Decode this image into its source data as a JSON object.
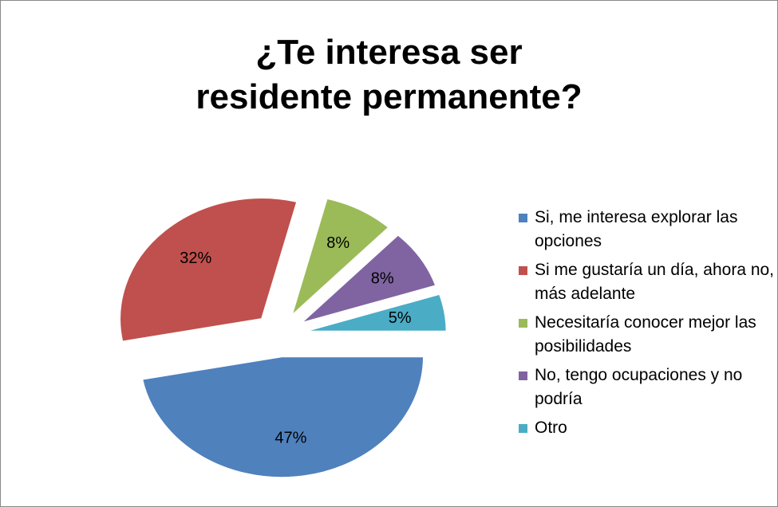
{
  "chart_data": {
    "type": "pie",
    "title": "¿Te interesa ser residente permanente?",
    "categories": [
      "Si, me interesa explorar las opciones",
      "Si me gustaría un día, ahora no, más adelante",
      "Necesitaría conocer mejor las posibilidades",
      "No, tengo ocupaciones y no podría",
      "Otro"
    ],
    "values": [
      47,
      32,
      8,
      8,
      5
    ],
    "value_labels": [
      "47%",
      "32%",
      "8%",
      "8%",
      "5%"
    ],
    "colors": [
      "#4f81bd",
      "#c0504d",
      "#9bbb59",
      "#8064a2",
      "#4bacc6"
    ],
    "legend": "right"
  }
}
